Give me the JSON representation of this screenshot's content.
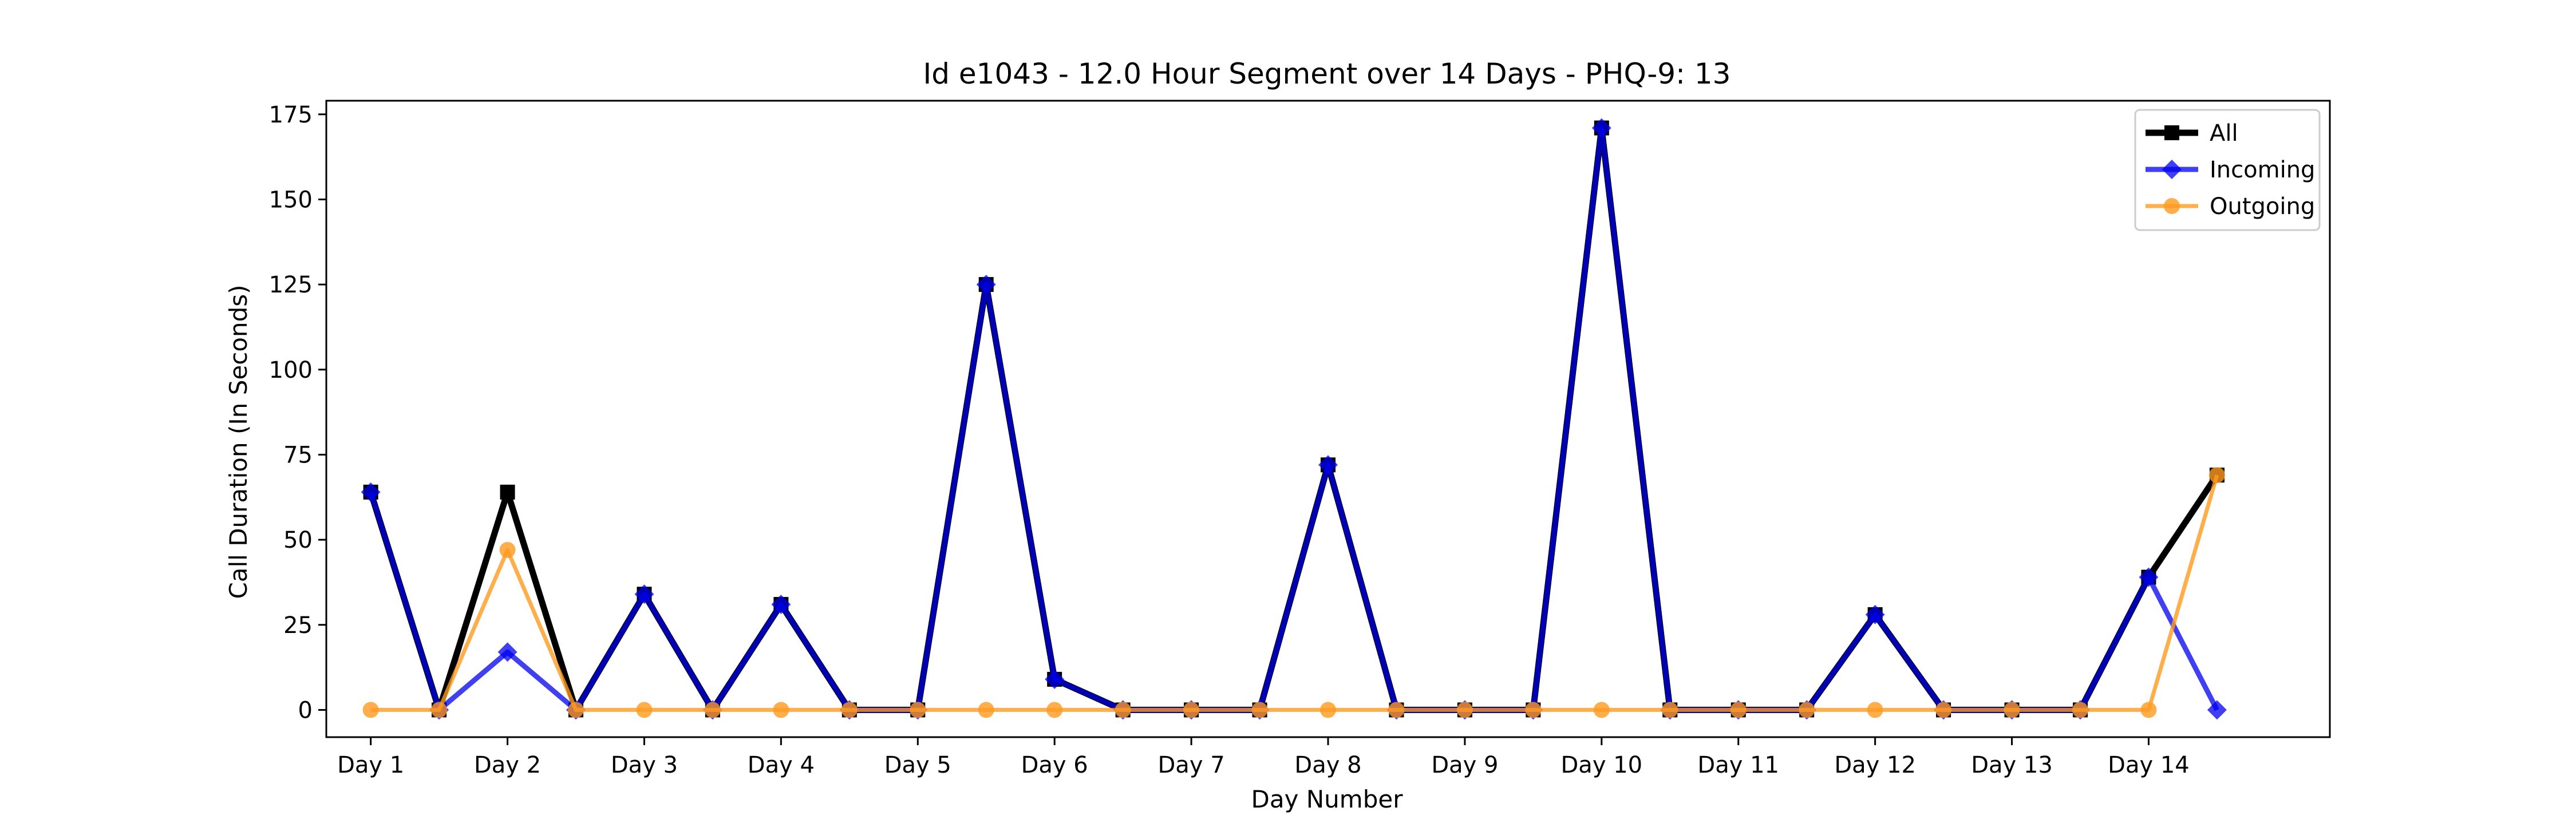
{
  "chart_data": {
    "type": "line",
    "title": "Id e1043 - 12.0 Hour Segment over 14 Days - PHQ-9: 13",
    "xlabel": "Day Number",
    "ylabel": "Call Duration (In Seconds)",
    "ylim": [
      -8,
      179
    ],
    "xlim": [
      -0.65,
      28.65
    ],
    "yticks": [
      0,
      25,
      50,
      75,
      100,
      125,
      150,
      175
    ],
    "categories": [
      "Day 1",
      "Day 2",
      "Day 3",
      "Day 4",
      "Day 5",
      "Day 6",
      "Day 7",
      "Day 8",
      "Day 9",
      "Day 10",
      "Day 11",
      "Day 12",
      "Day 13",
      "Day 14"
    ],
    "category_positions": [
      0,
      2,
      4,
      6,
      8,
      10,
      12,
      14,
      16,
      18,
      20,
      22,
      24,
      26
    ],
    "x": [
      0,
      1,
      2,
      3,
      4,
      5,
      6,
      7,
      8,
      9,
      10,
      11,
      12,
      13,
      14,
      15,
      16,
      17,
      18,
      19,
      20,
      21,
      22,
      23,
      24,
      25,
      26,
      27
    ],
    "series": [
      {
        "name": "All",
        "color": "#000000",
        "marker": "square",
        "values": [
          64,
          0,
          64,
          0,
          34,
          0,
          31,
          0,
          0,
          125,
          9,
          0,
          0,
          0,
          72,
          0,
          0,
          0,
          171,
          0,
          0,
          0,
          28,
          0,
          0,
          0,
          39,
          69
        ]
      },
      {
        "name": "Incoming",
        "color": "#0000ee",
        "marker": "diamond",
        "values": [
          64,
          0,
          17,
          0,
          34,
          0,
          31,
          0,
          0,
          125,
          9,
          0,
          0,
          0,
          72,
          0,
          0,
          0,
          171,
          0,
          0,
          0,
          28,
          0,
          0,
          0,
          39,
          0
        ]
      },
      {
        "name": "Outgoing",
        "color": "#ff9a1f",
        "marker": "circle",
        "values": [
          0,
          0,
          47,
          0,
          0,
          0,
          0,
          0,
          0,
          0,
          0,
          0,
          0,
          0,
          0,
          0,
          0,
          0,
          0,
          0,
          0,
          0,
          0,
          0,
          0,
          0,
          0,
          69
        ]
      }
    ],
    "legend": {
      "placement": "top-right"
    },
    "grid": false
  }
}
